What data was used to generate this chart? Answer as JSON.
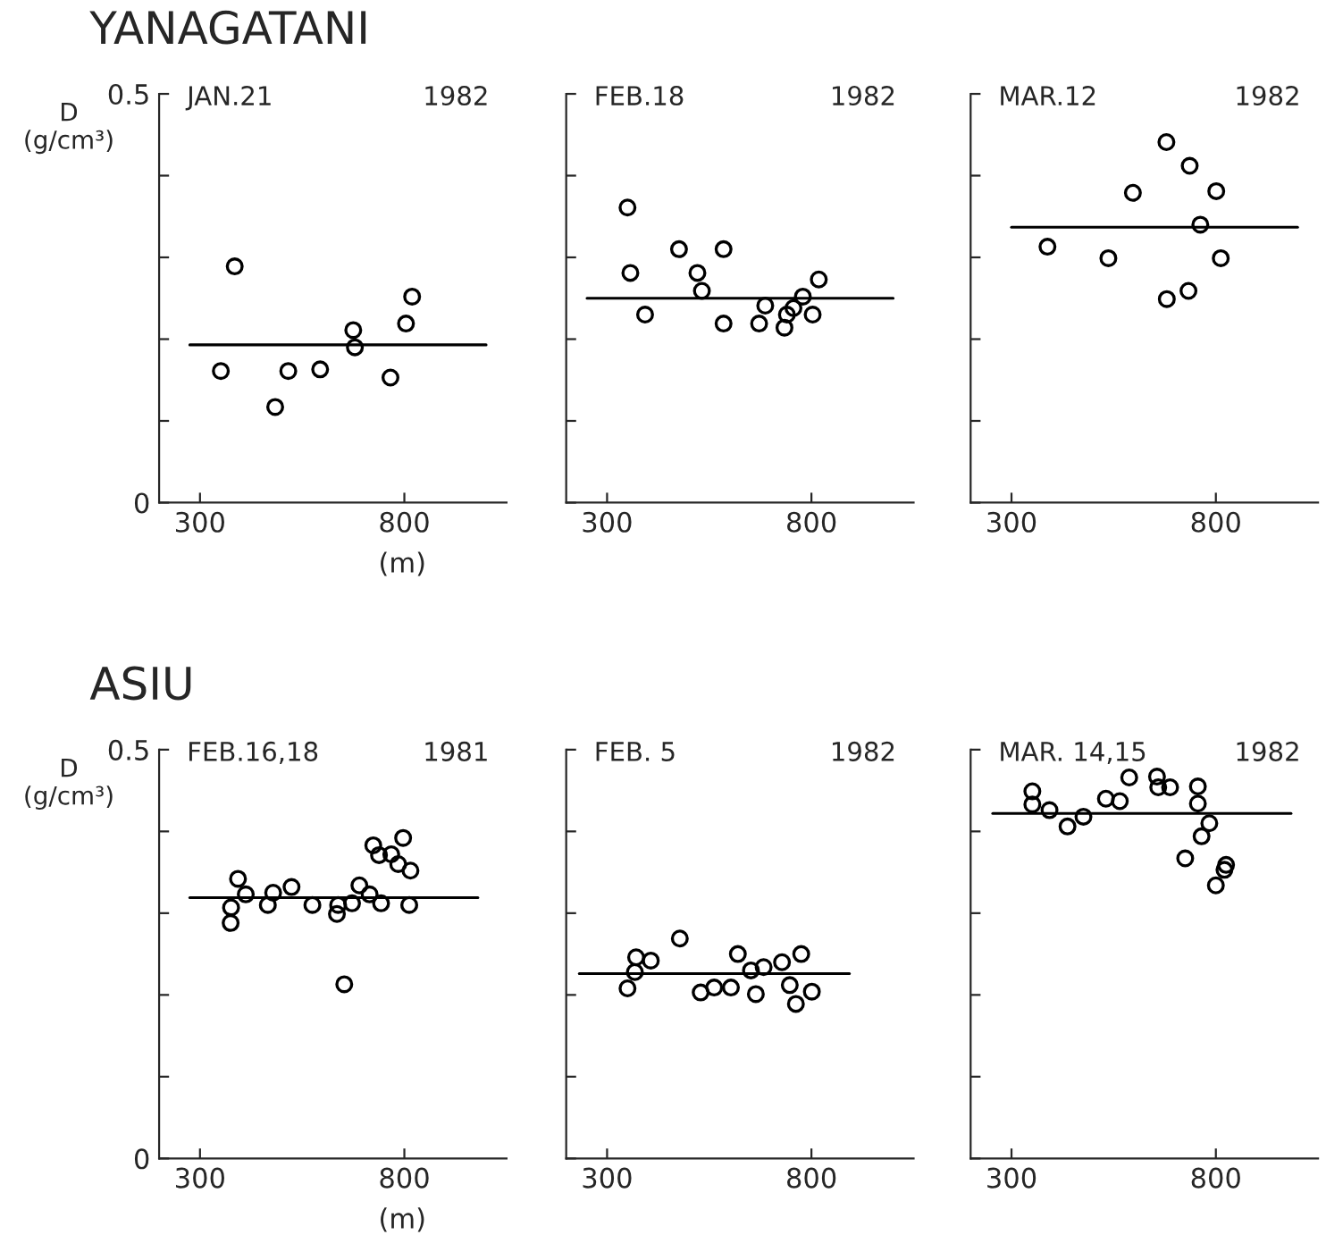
{
  "chart_data": [
    {
      "type": "scatter",
      "title": "YANAGATANI",
      "ylabel": "D\n(g/cm³)",
      "xlabel": "(m)",
      "annotations": [
        "JAN.21",
        "1982"
      ],
      "xlim": [
        200,
        1050
      ],
      "ylim": [
        0,
        0.5
      ],
      "xticks": [
        300,
        800
      ],
      "yticks": [
        0,
        {
          "value": 0.1,
          "label": null
        },
        {
          "value": 0.2,
          "label": null
        },
        {
          "value": 0.3,
          "label": null
        },
        {
          "value": 0.4,
          "label": null
        },
        0.5
      ],
      "grid": false,
      "legend": false,
      "series": [
        {
          "marker": "circle",
          "color": "#000000",
          "x": [
            351,
            385,
            484,
            516,
            594,
            675,
            679,
            766,
            804,
            819
          ],
          "values": [
            0.161,
            0.289,
            0.117,
            0.161,
            0.163,
            0.211,
            0.19,
            0.153,
            0.219,
            0.252
          ]
        },
        {
          "type": "line",
          "color": "#000000",
          "x": [
            275,
            1000
          ],
          "values": [
            0.193,
            0.193
          ]
        }
      ]
    },
    {
      "type": "scatter",
      "annotations": [
        "FEB.18",
        "1982"
      ],
      "xlim": [
        200,
        1050
      ],
      "ylim": [
        0,
        0.5
      ],
      "xticks": [
        300,
        800
      ],
      "yticks": [
        {
          "value": 0,
          "label": null
        },
        {
          "value": 0.1,
          "label": null
        },
        {
          "value": 0.2,
          "label": null
        },
        {
          "value": 0.3,
          "label": null
        },
        {
          "value": 0.4,
          "label": null
        },
        {
          "value": 0.5,
          "label": null
        }
      ],
      "tick_labels": "x",
      "grid": false,
      "legend": false,
      "series": [
        {
          "marker": "circle",
          "color": "#000000",
          "x": [
            350,
            357,
            393,
            476,
            521,
            532,
            585,
            585,
            672,
            687,
            734,
            740,
            756,
            779,
            803,
            818
          ],
          "values": [
            0.361,
            0.281,
            0.23,
            0.31,
            0.281,
            0.259,
            0.31,
            0.219,
            0.219,
            0.241,
            0.214,
            0.23,
            0.238,
            0.252,
            0.23,
            0.273
          ]
        },
        {
          "type": "line",
          "color": "#000000",
          "x": [
            251,
            1000
          ],
          "values": [
            0.25,
            0.25
          ]
        }
      ]
    },
    {
      "type": "scatter",
      "annotations": [
        "MAR.12",
        "1982"
      ],
      "xlim": [
        200,
        1050
      ],
      "ylim": [
        0,
        0.5
      ],
      "xticks": [
        300,
        800
      ],
      "yticks": [
        {
          "value": 0,
          "label": null
        },
        {
          "value": 0.1,
          "label": null
        },
        {
          "value": 0.2,
          "label": null
        },
        {
          "value": 0.3,
          "label": null
        },
        {
          "value": 0.4,
          "label": null
        },
        {
          "value": 0.5,
          "label": null
        }
      ],
      "tick_labels": "x",
      "grid": false,
      "legend": false,
      "series": [
        {
          "marker": "circle",
          "color": "#000000",
          "x": [
            388,
            537,
            597,
            679,
            736,
            801,
            762,
            812,
            680,
            733
          ],
          "values": [
            0.313,
            0.299,
            0.379,
            0.441,
            0.412,
            0.381,
            0.34,
            0.299,
            0.249,
            0.259
          ]
        },
        {
          "type": "line",
          "color": "#000000",
          "x": [
            300,
            1000
          ],
          "values": [
            0.337,
            0.337
          ]
        }
      ]
    },
    {
      "type": "scatter",
      "title": "ASIU",
      "ylabel": "D\n(g/cm³)",
      "xlabel": "(m)",
      "annotations": [
        "FEB.16,18",
        "1981"
      ],
      "xlim": [
        200,
        1050
      ],
      "ylim": [
        0,
        0.5
      ],
      "xticks": [
        300,
        800
      ],
      "yticks": [
        0,
        {
          "value": 0.1,
          "label": null
        },
        {
          "value": 0.2,
          "label": null
        },
        {
          "value": 0.3,
          "label": null
        },
        {
          "value": 0.4,
          "label": null
        },
        0.5
      ],
      "grid": false,
      "legend": false,
      "series": [
        {
          "marker": "circle",
          "color": "#000000",
          "x": [
            375,
            376,
            393,
            412,
            466,
            479,
            524,
            575,
            635,
            638,
            672,
            690,
            715,
            724,
            743,
            738,
            768,
            785,
            797,
            815,
            812,
            653
          ],
          "values": [
            0.288,
            0.307,
            0.342,
            0.323,
            0.31,
            0.325,
            0.332,
            0.31,
            0.299,
            0.31,
            0.312,
            0.334,
            0.323,
            0.383,
            0.312,
            0.371,
            0.372,
            0.36,
            0.392,
            0.352,
            0.31,
            0.213
          ]
        },
        {
          "type": "line",
          "color": "#000000",
          "x": [
            275,
            980
          ],
          "values": [
            0.319,
            0.319
          ]
        }
      ]
    },
    {
      "type": "scatter",
      "annotations": [
        "FEB. 5",
        "1982"
      ],
      "xlim": [
        200,
        1050
      ],
      "ylim": [
        0,
        0.5
      ],
      "xticks": [
        300,
        800
      ],
      "yticks": [
        {
          "value": 0,
          "label": null
        },
        {
          "value": 0.1,
          "label": null
        },
        {
          "value": 0.2,
          "label": null
        },
        {
          "value": 0.3,
          "label": null
        },
        {
          "value": 0.4,
          "label": null
        },
        {
          "value": 0.5,
          "label": null
        }
      ],
      "tick_labels": "x",
      "grid": false,
      "legend": false,
      "series": [
        {
          "marker": "circle",
          "color": "#000000",
          "x": [
            350,
            368,
            371,
            407,
            478,
            529,
            562,
            603,
            620,
            652,
            664,
            683,
            728,
            747,
            762,
            775,
            801
          ],
          "values": [
            0.208,
            0.228,
            0.246,
            0.242,
            0.269,
            0.203,
            0.209,
            0.209,
            0.25,
            0.23,
            0.201,
            0.234,
            0.24,
            0.212,
            0.189,
            0.25,
            0.204
          ]
        },
        {
          "type": "line",
          "color": "#000000",
          "x": [
            232,
            893
          ],
          "values": [
            0.226,
            0.226
          ]
        }
      ]
    },
    {
      "type": "scatter",
      "annotations": [
        "MAR. 14,15",
        "1982"
      ],
      "xlim": [
        200,
        1050
      ],
      "ylim": [
        0,
        0.5
      ],
      "xticks": [
        300,
        800
      ],
      "yticks": [
        {
          "value": 0,
          "label": null
        },
        {
          "value": 0.1,
          "label": null
        },
        {
          "value": 0.2,
          "label": null
        },
        {
          "value": 0.3,
          "label": null
        },
        {
          "value": 0.4,
          "label": null
        },
        {
          "value": 0.5,
          "label": null
        }
      ],
      "tick_labels": "x",
      "grid": false,
      "legend": false,
      "series": [
        {
          "marker": "circle",
          "color": "#000000",
          "x": [
            351,
            351,
            393,
            437,
            476,
            531,
            565,
            588,
            656,
            659,
            688,
            756,
            756,
            784,
            765,
            725,
            825,
            821,
            800
          ],
          "values": [
            0.449,
            0.433,
            0.426,
            0.406,
            0.418,
            0.44,
            0.437,
            0.466,
            0.467,
            0.454,
            0.454,
            0.455,
            0.434,
            0.41,
            0.394,
            0.367,
            0.359,
            0.353,
            0.334
          ]
        },
        {
          "type": "line",
          "color": "#000000",
          "x": [
            254,
            984
          ],
          "values": [
            0.422,
            0.422
          ]
        }
      ]
    }
  ]
}
